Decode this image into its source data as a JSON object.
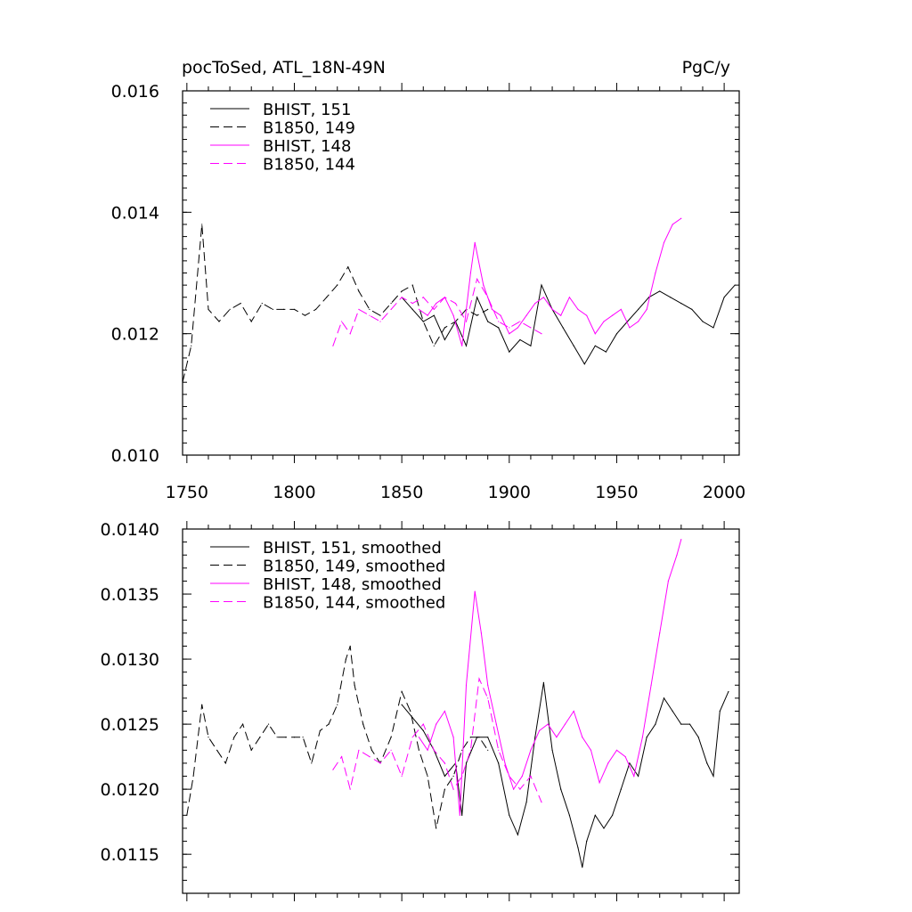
{
  "header": {
    "title": "pocToSed, ATL_18N-49N",
    "units": "PgC/y"
  },
  "chart_data": [
    {
      "type": "line",
      "xlim": [
        1748,
        2007
      ],
      "ylim": [
        0.01,
        0.016
      ],
      "x_ticks": [
        1750,
        1800,
        1850,
        1900,
        1950,
        2000
      ],
      "x_tick_labels": [
        "1750",
        "1800",
        "1850",
        "1900",
        "1950",
        "2000"
      ],
      "y_ticks": [
        0.01,
        0.012,
        0.014,
        0.016
      ],
      "y_tick_labels": [
        "0.010",
        "0.012",
        "0.014",
        "0.016"
      ],
      "legend_position": "top-left",
      "grid": false,
      "series": [
        {
          "name": "BHIST, 151",
          "color": "#000000",
          "dash": "solid",
          "x": [
            1850,
            1855,
            1860,
            1865,
            1870,
            1875,
            1880,
            1885,
            1890,
            1895,
            1900,
            1905,
            1910,
            1915,
            1920,
            1925,
            1930,
            1935,
            1940,
            1945,
            1950,
            1955,
            1960,
            1965,
            1970,
            1975,
            1980,
            1985,
            1990,
            1995,
            2000,
            2005
          ],
          "y": [
            0.0126,
            0.0124,
            0.0122,
            0.0123,
            0.0119,
            0.0122,
            0.0118,
            0.0126,
            0.0122,
            0.0121,
            0.0117,
            0.0119,
            0.0118,
            0.0128,
            0.0124,
            0.0121,
            0.0118,
            0.0115,
            0.0118,
            0.0117,
            0.012,
            0.0122,
            0.0124,
            0.0126,
            0.0127,
            0.0126,
            0.0125,
            0.0124,
            0.0122,
            0.0121,
            0.0126,
            0.0128
          ]
        },
        {
          "name": "B1850, 149",
          "color": "#000000",
          "dash": "dashed",
          "x": [
            1748,
            1752,
            1757,
            1760,
            1765,
            1770,
            1775,
            1780,
            1785,
            1790,
            1795,
            1800,
            1805,
            1810,
            1815,
            1820,
            1825,
            1830,
            1835,
            1840,
            1845,
            1850,
            1855,
            1860,
            1865,
            1870,
            1875,
            1880,
            1885,
            1890
          ],
          "y": [
            0.0112,
            0.0118,
            0.0138,
            0.0124,
            0.0122,
            0.0124,
            0.0125,
            0.0122,
            0.0125,
            0.0124,
            0.0124,
            0.0124,
            0.0123,
            0.0124,
            0.0126,
            0.0128,
            0.0131,
            0.0127,
            0.0124,
            0.0123,
            0.0125,
            0.0127,
            0.0128,
            0.0122,
            0.0118,
            0.0121,
            0.0122,
            0.0124,
            0.0123,
            0.0124
          ]
        },
        {
          "name": "BHIST, 148",
          "color": "#ff00ff",
          "dash": "solid",
          "x": [
            1858,
            1862,
            1866,
            1870,
            1874,
            1878,
            1882,
            1884,
            1888,
            1892,
            1896,
            1900,
            1904,
            1908,
            1912,
            1916,
            1920,
            1924,
            1928,
            1932,
            1936,
            1940,
            1944,
            1948,
            1952,
            1956,
            1960,
            1964,
            1968,
            1972,
            1976,
            1980
          ],
          "y": [
            0.0124,
            0.0123,
            0.0125,
            0.0126,
            0.0123,
            0.0118,
            0.013,
            0.0135,
            0.0128,
            0.0124,
            0.0123,
            0.012,
            0.0121,
            0.0123,
            0.0125,
            0.0126,
            0.0124,
            0.0123,
            0.0126,
            0.0124,
            0.0123,
            0.012,
            0.0122,
            0.0123,
            0.0124,
            0.0121,
            0.0122,
            0.0124,
            0.013,
            0.0135,
            0.0138,
            0.0139
          ]
        },
        {
          "name": "B1850, 144",
          "color": "#ff00ff",
          "dash": "dashed",
          "x": [
            1818,
            1822,
            1826,
            1830,
            1835,
            1840,
            1845,
            1850,
            1855,
            1860,
            1865,
            1870,
            1875,
            1880,
            1885,
            1890,
            1895,
            1900,
            1905,
            1910,
            1915
          ],
          "y": [
            0.0118,
            0.0122,
            0.012,
            0.0124,
            0.0123,
            0.0122,
            0.0124,
            0.0126,
            0.0125,
            0.0126,
            0.0124,
            0.0126,
            0.0125,
            0.0122,
            0.0129,
            0.0126,
            0.0122,
            0.0121,
            0.0122,
            0.0121,
            0.012
          ]
        }
      ]
    },
    {
      "type": "line",
      "xlim": [
        1748,
        2007
      ],
      "ylim": [
        0.0112,
        0.014
      ],
      "y_ticks": [
        0.0115,
        0.012,
        0.0125,
        0.013,
        0.0135,
        0.014
      ],
      "y_tick_labels": [
        "0.0115",
        "0.0120",
        "0.0125",
        "0.0130",
        "0.0135",
        "0.0140"
      ],
      "legend_position": "top-left",
      "grid": false,
      "series": [
        {
          "name": "BHIST, 151, smoothed",
          "color": "#000000",
          "dash": "solid",
          "x": [
            1850,
            1855,
            1860,
            1865,
            1870,
            1875,
            1878,
            1880,
            1885,
            1890,
            1895,
            1900,
            1904,
            1908,
            1912,
            1916,
            1920,
            1924,
            1928,
            1932,
            1934,
            1936,
            1940,
            1944,
            1948,
            1952,
            1956,
            1960,
            1964,
            1968,
            1972,
            1976,
            1980,
            1984,
            1988,
            1992,
            1995,
            1998,
            2002
          ],
          "y": [
            0.01265,
            0.01255,
            0.01245,
            0.0123,
            0.0121,
            0.0122,
            0.0118,
            0.0122,
            0.0124,
            0.0124,
            0.0122,
            0.0118,
            0.01165,
            0.0119,
            0.0124,
            0.01282,
            0.0123,
            0.012,
            0.0118,
            0.01155,
            0.0114,
            0.0116,
            0.0118,
            0.0117,
            0.0118,
            0.012,
            0.0122,
            0.0121,
            0.0124,
            0.0125,
            0.0127,
            0.0126,
            0.0125,
            0.0125,
            0.0124,
            0.0122,
            0.0121,
            0.0126,
            0.01275
          ]
        },
        {
          "name": "B1850, 149, smoothed",
          "color": "#000000",
          "dash": "dashed",
          "x": [
            1750,
            1753,
            1757,
            1760,
            1764,
            1768,
            1772,
            1776,
            1780,
            1784,
            1788,
            1792,
            1796,
            1800,
            1804,
            1808,
            1812,
            1816,
            1820,
            1824,
            1826,
            1828,
            1832,
            1836,
            1840,
            1845,
            1850,
            1854,
            1858,
            1862,
            1866,
            1870,
            1874,
            1878,
            1882,
            1886,
            1890
          ],
          "y": [
            0.0118,
            0.0121,
            0.01265,
            0.0124,
            0.0123,
            0.0122,
            0.0124,
            0.0125,
            0.0123,
            0.0124,
            0.0125,
            0.0124,
            0.0124,
            0.0124,
            0.0124,
            0.0122,
            0.01245,
            0.0125,
            0.01265,
            0.013,
            0.0131,
            0.0128,
            0.0125,
            0.0123,
            0.0122,
            0.0124,
            0.01275,
            0.0126,
            0.0123,
            0.0121,
            0.0117,
            0.012,
            0.0121,
            0.0123,
            0.0124,
            0.0124,
            0.0123
          ]
        },
        {
          "name": "BHIST, 148, smoothed",
          "color": "#ff00ff",
          "dash": "solid",
          "x": [
            1858,
            1862,
            1866,
            1870,
            1874,
            1877,
            1880,
            1884,
            1887,
            1890,
            1894,
            1898,
            1902,
            1906,
            1910,
            1914,
            1918,
            1922,
            1926,
            1930,
            1934,
            1938,
            1942,
            1946,
            1950,
            1954,
            1958,
            1962,
            1966,
            1970,
            1974,
            1978,
            1980
          ],
          "y": [
            0.0124,
            0.0123,
            0.0125,
            0.0126,
            0.0124,
            0.0118,
            0.0128,
            0.01352,
            0.0132,
            0.0128,
            0.0125,
            0.0122,
            0.012,
            0.0121,
            0.0123,
            0.01245,
            0.0125,
            0.0124,
            0.0125,
            0.0126,
            0.0124,
            0.0123,
            0.01205,
            0.0122,
            0.0123,
            0.01225,
            0.0121,
            0.0124,
            0.0128,
            0.0132,
            0.0136,
            0.0138,
            0.01392
          ]
        },
        {
          "name": "B1850, 144, smoothed",
          "color": "#ff00ff",
          "dash": "dashed",
          "x": [
            1818,
            1822,
            1826,
            1830,
            1835,
            1840,
            1845,
            1850,
            1855,
            1860,
            1865,
            1870,
            1874,
            1878,
            1882,
            1886,
            1890,
            1895,
            1900,
            1905,
            1910,
            1915
          ],
          "y": [
            0.01215,
            0.01225,
            0.012,
            0.0123,
            0.01225,
            0.0122,
            0.0123,
            0.0121,
            0.0124,
            0.0125,
            0.0123,
            0.0122,
            0.012,
            0.0121,
            0.0123,
            0.01285,
            0.0127,
            0.0123,
            0.0121,
            0.012,
            0.0121,
            0.0119
          ]
        }
      ]
    }
  ]
}
